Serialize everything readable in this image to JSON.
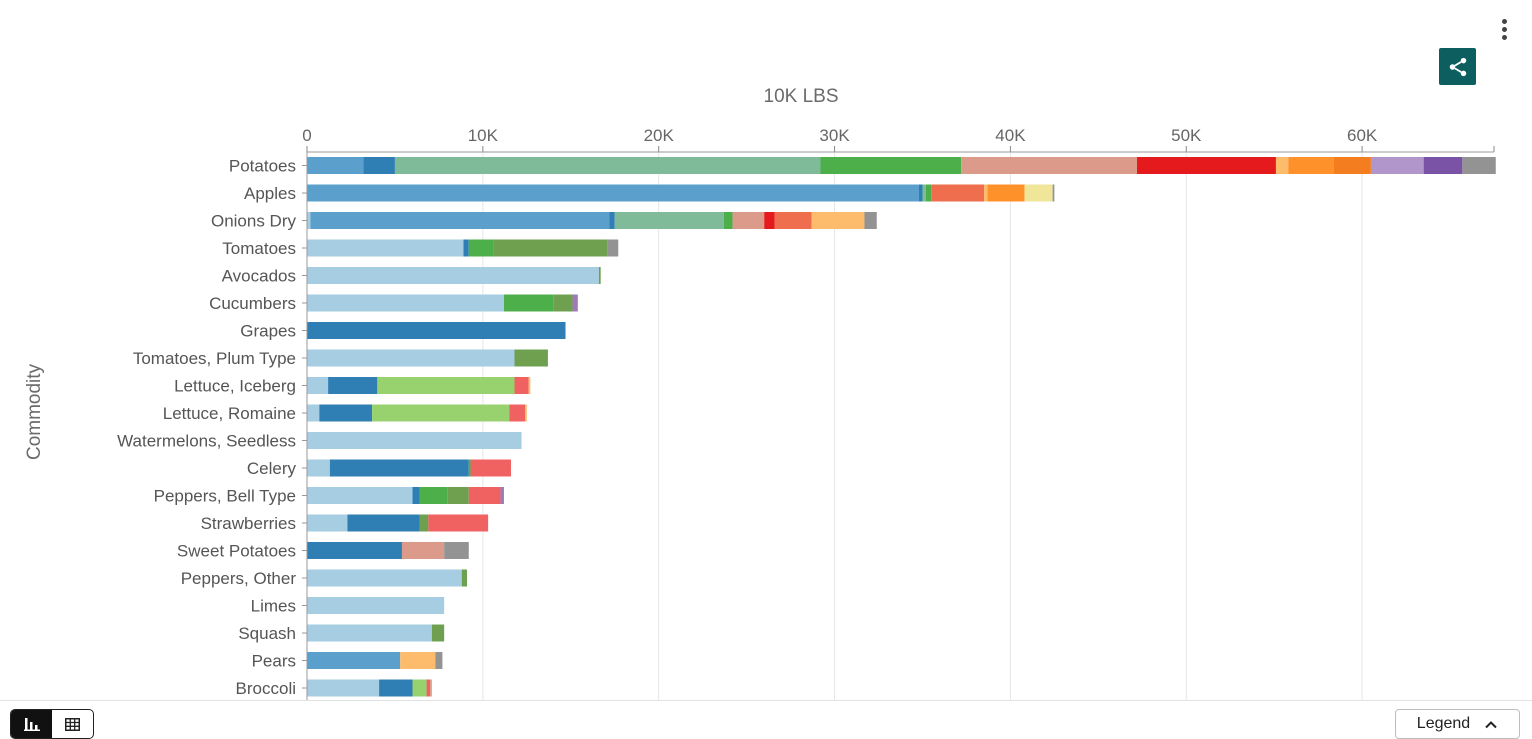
{
  "toolbar": {
    "menu_icon": "more-vertical-icon",
    "share_icon": "share-icon"
  },
  "footer": {
    "legend_label": "Legend",
    "chart_view_icon": "bar-chart-icon",
    "table_view_icon": "table-icon",
    "legend_icon": "chevron-up-icon"
  },
  "chart_data": {
    "type": "bar",
    "orientation": "horizontal",
    "stacked": true,
    "x_axis_title": "10K LBS",
    "y_axis_title": "Commodity",
    "x_axis_position": "top",
    "xlim": [
      0,
      67500
    ],
    "x_ticks": [
      0,
      10000,
      20000,
      30000,
      40000,
      50000,
      60000
    ],
    "x_tick_labels": [
      "0",
      "10K",
      "20K",
      "30K",
      "40K",
      "50K",
      "60K"
    ],
    "grid": "vertical",
    "legend": "collapsed, bottom-right",
    "categories": [
      "Potatoes",
      "Apples",
      "Onions Dry",
      "Tomatoes",
      "Avocados",
      "Cucumbers",
      "Grapes",
      "Tomatoes, Plum Type",
      "Lettuce, Iceberg",
      "Lettuce, Romaine",
      "Watermelons, Seedless",
      "Celery",
      "Peppers, Bell Type",
      "Strawberries",
      "Sweet Potatoes",
      "Peppers, Other",
      "Limes",
      "Squash",
      "Pears",
      "Broccoli"
    ],
    "rows": [
      [
        [
          "#5ba0cc",
          3200
        ],
        [
          "#2f7fb4",
          1800
        ],
        [
          "#7fbb98",
          24200
        ],
        [
          "#4daf4a",
          8000
        ],
        [
          "#dc9b8a",
          10000
        ],
        [
          "#e41a1c",
          7900
        ],
        [
          "#fdbb6c",
          700
        ],
        [
          "#ff912b",
          2600
        ],
        [
          "#f47e1f",
          2100
        ],
        [
          "#b196cc",
          3000
        ],
        [
          "#7a52a6",
          2200
        ],
        [
          "#939393",
          1900
        ]
      ],
      [
        [
          "#5ba0cc",
          34800
        ],
        [
          "#2f7fb4",
          200
        ],
        [
          "#7fbb98",
          200
        ],
        [
          "#4daf4a",
          300
        ],
        [
          "#ee6e4e",
          3000
        ],
        [
          "#fdbb6c",
          200
        ],
        [
          "#ff912b",
          2100
        ],
        [
          "#f0e69a",
          1600
        ],
        [
          "#939393",
          100
        ]
      ],
      [
        [
          "#a6cde2",
          200
        ],
        [
          "#5ba0cc",
          17000
        ],
        [
          "#2f7fb4",
          300
        ],
        [
          "#7fbb98",
          6200
        ],
        [
          "#4daf4a",
          500
        ],
        [
          "#dc9b8a",
          1800
        ],
        [
          "#e41a1c",
          600
        ],
        [
          "#ee6e4e",
          2100
        ],
        [
          "#fdbb6c",
          3000
        ],
        [
          "#939393",
          700
        ]
      ],
      [
        [
          "#a6cde2",
          8900
        ],
        [
          "#2f7fb4",
          300
        ],
        [
          "#4daf4a",
          1400
        ],
        [
          "#6ea04f",
          6500
        ],
        [
          "#939393",
          600
        ]
      ],
      [
        [
          "#a6cde2",
          16600
        ],
        [
          "#6ea04f",
          100
        ]
      ],
      [
        [
          "#a6cde2",
          11200
        ],
        [
          "#4daf4a",
          2800
        ],
        [
          "#6ea04f",
          1100
        ],
        [
          "#9e7bb5",
          300
        ]
      ],
      [
        [
          "#2f7fb4",
          14700
        ]
      ],
      [
        [
          "#a6cde2",
          11800
        ],
        [
          "#6ea04f",
          1900
        ]
      ],
      [
        [
          "#a6cde2",
          1200
        ],
        [
          "#2f7fb4",
          2800
        ],
        [
          "#98d26f",
          7800
        ],
        [
          "#f06262",
          800
        ],
        [
          "#fdbb6c",
          100
        ]
      ],
      [
        [
          "#a6cde2",
          700
        ],
        [
          "#2f7fb4",
          3000
        ],
        [
          "#98d26f",
          7800
        ],
        [
          "#f06262",
          900
        ],
        [
          "#fdbb6c",
          100
        ]
      ],
      [
        [
          "#a6cde2",
          12200
        ]
      ],
      [
        [
          "#a6cde2",
          1300
        ],
        [
          "#2f7fb4",
          7900
        ],
        [
          "#4daf4a",
          100
        ],
        [
          "#f06262",
          2300
        ]
      ],
      [
        [
          "#a6cde2",
          6000
        ],
        [
          "#2f7fb4",
          400
        ],
        [
          "#4daf4a",
          1600
        ],
        [
          "#6ea04f",
          1200
        ],
        [
          "#f06262",
          1800
        ],
        [
          "#9e7bb5",
          200
        ]
      ],
      [
        [
          "#a6cde2",
          2300
        ],
        [
          "#2f7fb4",
          4100
        ],
        [
          "#6ea04f",
          500
        ],
        [
          "#f06262",
          3400
        ]
      ],
      [
        [
          "#2f7fb4",
          5400
        ],
        [
          "#dc9b8a",
          2400
        ],
        [
          "#939393",
          1400
        ]
      ],
      [
        [
          "#a6cde2",
          8800
        ],
        [
          "#6ea04f",
          300
        ]
      ],
      [
        [
          "#a6cde2",
          7800
        ]
      ],
      [
        [
          "#a6cde2",
          7100
        ],
        [
          "#6ea04f",
          700
        ]
      ],
      [
        [
          "#5ba0cc",
          5300
        ],
        [
          "#fdbb6c",
          2000
        ],
        [
          "#939393",
          400
        ]
      ],
      [
        [
          "#a6cde2",
          4100
        ],
        [
          "#2f7fb4",
          1900
        ],
        [
          "#98d26f",
          800
        ],
        [
          "#f06262",
          200
        ],
        [
          "#dc9b8a",
          100
        ]
      ]
    ]
  }
}
